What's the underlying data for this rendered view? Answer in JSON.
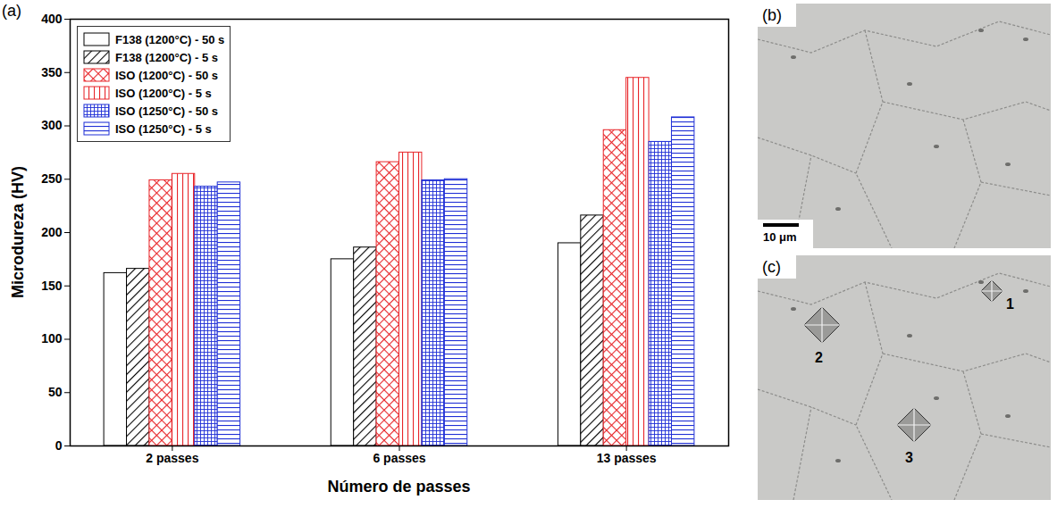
{
  "chart_data": {
    "type": "bar",
    "panel_label": "(a)",
    "x_label": "Número de passes",
    "y_label": "Microdureza (HV)",
    "categories": [
      "2 passes",
      "6 passes",
      "13 passes"
    ],
    "series": [
      {
        "name": "F138 (1200°C) - 50 s",
        "color": "#000000",
        "values": [
          162,
          175,
          190
        ]
      },
      {
        "name": "F138 (1200°C) - 5 s",
        "color": "#000000",
        "values": [
          166,
          186,
          216
        ]
      },
      {
        "name": "ISO (1200°C) - 50 s",
        "color": "#e8262a",
        "values": [
          249,
          266,
          296
        ]
      },
      {
        "name": "ISO (1200°C) - 5 s",
        "color": "#e8262a",
        "values": [
          255,
          275,
          345
        ]
      },
      {
        "name": "ISO (1250°C) - 50 s",
        "color": "#1f2fd6",
        "values": [
          243,
          249,
          285
        ]
      },
      {
        "name": "ISO (1250°C) - 5 s",
        "color": "#1f2fd6",
        "values": [
          247,
          250,
          308
        ]
      }
    ],
    "ylim": [
      0,
      400
    ],
    "yticks": [
      0,
      50,
      100,
      150,
      200,
      250,
      300,
      350,
      400
    ],
    "grid": false,
    "legend": "top-left"
  },
  "images": [
    {
      "panel_label": "(b)",
      "scale_bar": "10 μm"
    },
    {
      "panel_label": "(c)",
      "indent_labels": [
        "1",
        "2",
        "3"
      ]
    }
  ]
}
